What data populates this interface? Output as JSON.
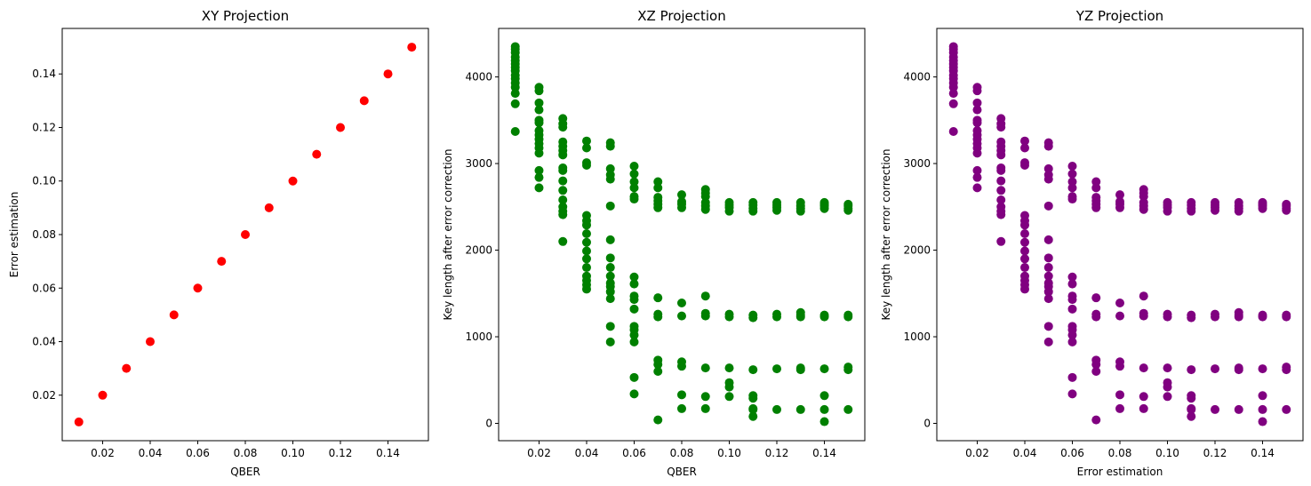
{
  "chart_data": [
    {
      "type": "scatter",
      "title": "XY Projection",
      "xlabel": "QBER",
      "ylabel": "Error estimation",
      "xlim": [
        0.003,
        0.157
      ],
      "ylim": [
        0.003,
        0.157
      ],
      "xticks": [
        0.02,
        0.04,
        0.06,
        0.08,
        0.1,
        0.12,
        0.14
      ],
      "xtick_labels": [
        "0.02",
        "0.04",
        "0.06",
        "0.08",
        "0.10",
        "0.12",
        "0.14"
      ],
      "yticks": [
        0.02,
        0.04,
        0.06,
        0.08,
        0.1,
        0.12,
        0.14
      ],
      "ytick_labels": [
        "0.02",
        "0.04",
        "0.06",
        "0.08",
        "0.10",
        "0.12",
        "0.14"
      ],
      "grid": false,
      "color": "#ff0000",
      "points": [
        {
          "x": 0.01,
          "y": 0.01
        },
        {
          "x": 0.02,
          "y": 0.02
        },
        {
          "x": 0.03,
          "y": 0.03
        },
        {
          "x": 0.04,
          "y": 0.04
        },
        {
          "x": 0.05,
          "y": 0.05
        },
        {
          "x": 0.06,
          "y": 0.06
        },
        {
          "x": 0.07,
          "y": 0.07
        },
        {
          "x": 0.08,
          "y": 0.08
        },
        {
          "x": 0.09,
          "y": 0.09
        },
        {
          "x": 0.1,
          "y": 0.1
        },
        {
          "x": 0.11,
          "y": 0.11
        },
        {
          "x": 0.12,
          "y": 0.12
        },
        {
          "x": 0.13,
          "y": 0.13
        },
        {
          "x": 0.14,
          "y": 0.14
        },
        {
          "x": 0.15,
          "y": 0.15
        }
      ]
    },
    {
      "type": "scatter",
      "title": "XZ Projection",
      "xlabel": "QBER",
      "ylabel": "Key length after error correction",
      "xlim": [
        0.003,
        0.157
      ],
      "ylim": [
        -200,
        4560
      ],
      "xticks": [
        0.02,
        0.04,
        0.06,
        0.08,
        0.1,
        0.12,
        0.14
      ],
      "xtick_labels": [
        "0.02",
        "0.04",
        "0.06",
        "0.08",
        "0.10",
        "0.12",
        "0.14"
      ],
      "yticks": [
        0,
        1000,
        2000,
        3000,
        4000
      ],
      "ytick_labels": [
        "0",
        "1000",
        "2000",
        "3000",
        "4000"
      ],
      "grid": false,
      "color": "#008000",
      "point_set": "key_length"
    },
    {
      "type": "scatter",
      "title": "YZ Projection",
      "xlabel": "Error estimation",
      "ylabel": "Key length after error correction",
      "xlim": [
        0.003,
        0.157
      ],
      "ylim": [
        -200,
        4560
      ],
      "xticks": [
        0.02,
        0.04,
        0.06,
        0.08,
        0.1,
        0.12,
        0.14
      ],
      "xtick_labels": [
        "0.02",
        "0.04",
        "0.06",
        "0.08",
        "0.10",
        "0.12",
        "0.14"
      ],
      "yticks": [
        0,
        1000,
        2000,
        3000,
        4000
      ],
      "ytick_labels": [
        "0",
        "1000",
        "2000",
        "3000",
        "4000"
      ],
      "grid": false,
      "color": "#800080",
      "point_set": "key_length"
    }
  ],
  "key_length": [
    {
      "x": 0.01,
      "y": [
        3370,
        3690,
        3810,
        3880,
        3930,
        3980,
        4020,
        4070,
        4110,
        4150,
        4190,
        4230,
        4280,
        4320,
        4350
      ]
    },
    {
      "x": 0.02,
      "y": [
        2720,
        2840,
        2920,
        3120,
        3180,
        3230,
        3280,
        3330,
        3380,
        3470,
        3500,
        3620,
        3700,
        3840,
        3880
      ]
    },
    {
      "x": 0.03,
      "y": [
        2100,
        2410,
        2450,
        2500,
        2580,
        2690,
        2800,
        2920,
        2950,
        3100,
        3150,
        3200,
        3250,
        3420,
        3460,
        3520
      ]
    },
    {
      "x": 0.04,
      "y": [
        1550,
        1600,
        1650,
        1700,
        1800,
        1900,
        1990,
        2090,
        2190,
        2290,
        2340,
        2400,
        2980,
        3010,
        3180,
        3260
      ]
    },
    {
      "x": 0.05,
      "y": [
        940,
        1120,
        1440,
        1520,
        1580,
        1620,
        1700,
        1800,
        1910,
        2120,
        2510,
        2820,
        2870,
        2940,
        3200,
        3240
      ]
    },
    {
      "x": 0.06,
      "y": [
        340,
        530,
        940,
        1020,
        1080,
        1120,
        1320,
        1430,
        1470,
        1610,
        1690,
        2590,
        2620,
        2720,
        2790,
        2880,
        2970
      ]
    },
    {
      "x": 0.07,
      "y": [
        40,
        600,
        680,
        730,
        1230,
        1260,
        1450,
        2490,
        2530,
        2570,
        2610,
        2720,
        2790
      ]
    },
    {
      "x": 0.08,
      "y": [
        170,
        330,
        660,
        710,
        1240,
        1390,
        2490,
        2530,
        2560,
        2640
      ]
    },
    {
      "x": 0.09,
      "y": [
        170,
        310,
        640,
        1240,
        1270,
        1470,
        2470,
        2510,
        2550,
        2620,
        2660,
        2700
      ]
    },
    {
      "x": 0.1,
      "y": [
        310,
        420,
        470,
        640,
        1230,
        1260,
        2450,
        2490,
        2520,
        2550
      ]
    },
    {
      "x": 0.11,
      "y": [
        80,
        160,
        170,
        290,
        320,
        620,
        1220,
        1250,
        2450,
        2480,
        2520,
        2550
      ]
    },
    {
      "x": 0.12,
      "y": [
        160,
        630,
        1230,
        1260,
        2460,
        2490,
        2520,
        2550
      ]
    },
    {
      "x": 0.13,
      "y": [
        160,
        620,
        640,
        1230,
        1250,
        1280,
        2450,
        2480,
        2510,
        2550
      ]
    },
    {
      "x": 0.14,
      "y": [
        20,
        160,
        320,
        630,
        1230,
        1250,
        2480,
        2510,
        2530,
        2550
      ]
    },
    {
      "x": 0.15,
      "y": [
        160,
        620,
        650,
        1230,
        1250,
        2460,
        2480,
        2510,
        2530
      ]
    }
  ]
}
